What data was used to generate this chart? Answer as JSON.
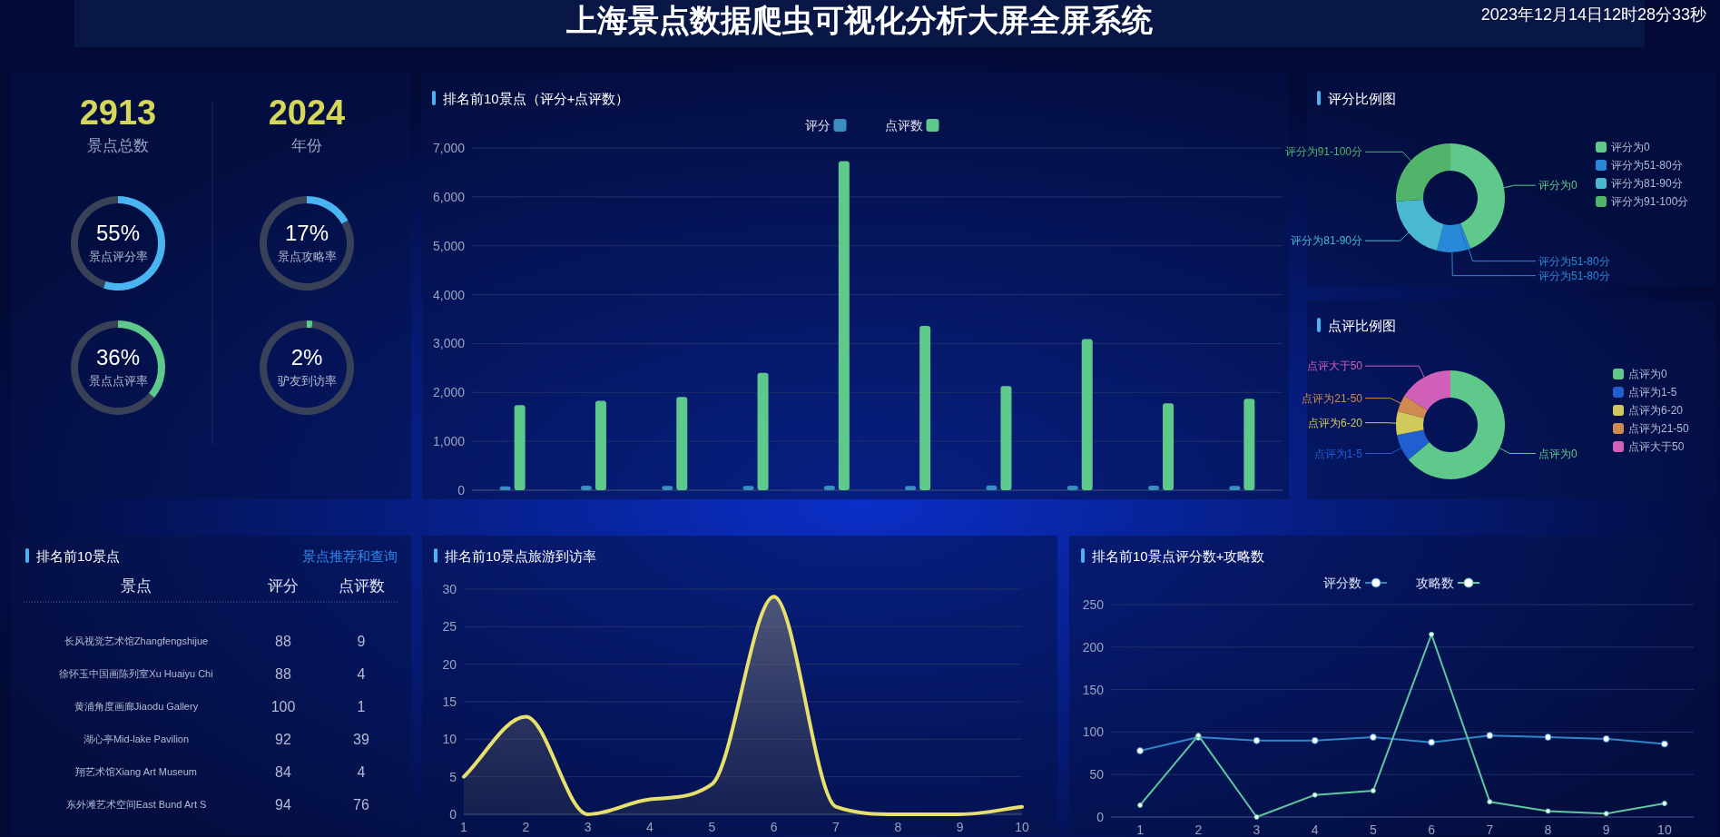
{
  "chart_data": [
    {
      "type": "other",
      "title": "上海景点数据爬虫可视化分析大屏全屏系统",
      "annotations": [
        "2023年12月14日12时28分33秒"
      ]
    },
    {
      "type": "other",
      "annotations": [
        "2913",
        "景点总数",
        "2024",
        "年份"
      ]
    },
    {
      "type": "donut",
      "categories": [
        "景点评分率",
        null
      ],
      "values": [
        55,
        45
      ],
      "colors": [
        "#4ab4f0",
        "#394159"
      ],
      "value_labels": [
        "55%",
        null
      ]
    },
    {
      "type": "donut",
      "categories": [
        "景点攻略率",
        null
      ],
      "values": [
        17,
        83
      ],
      "colors": [
        "#4ab4f0",
        "#394159"
      ],
      "value_labels": [
        "17%",
        null
      ]
    },
    {
      "type": "donut",
      "categories": [
        "景点点评率",
        null
      ],
      "values": [
        36,
        64
      ],
      "colors": [
        "#5ec98a",
        "#394159"
      ],
      "value_labels": [
        "36%",
        null
      ]
    },
    {
      "type": "donut",
      "categories": [
        "驴友到访率",
        null
      ],
      "values": [
        2,
        98
      ],
      "colors": [
        "#5ec98a",
        "#394159"
      ],
      "value_labels": [
        "2%",
        null
      ]
    },
    {
      "type": "bar",
      "title": "排名前10景点（评分+点评数）",
      "categories": [
        null,
        null,
        null,
        null,
        null,
        null,
        null,
        null,
        null,
        null
      ],
      "series": [
        {
          "name": "评分",
          "color": "#3a8fc0",
          "values": [
            78,
            94,
            90,
            90,
            94,
            88,
            96,
            94,
            92,
            86
          ]
        },
        {
          "name": "点评数",
          "color": "#5ec98a",
          "values": [
            1740,
            1830,
            1910,
            2400,
            6730,
            3360,
            2130,
            3090,
            1780,
            1870
          ]
        }
      ],
      "ylim": [
        0,
        7000
      ],
      "yticks": [
        0,
        {
          "value": 1000,
          "label": "1,000"
        },
        {
          "value": 2000,
          "label": "2,000"
        },
        {
          "value": 3000,
          "label": "3,000"
        },
        {
          "value": 4000,
          "label": "4,000"
        },
        {
          "value": 5000,
          "label": "5,000"
        },
        {
          "value": 6000,
          "label": "6,000"
        },
        {
          "value": 7000,
          "label": "7,000"
        }
      ],
      "grid": "y",
      "legend": "top"
    },
    {
      "type": "donut",
      "title": "评分比例图",
      "categories": [
        "评分为0",
        "评分为51-80分",
        "评分为51-80分",
        "评分为81-90分",
        "评分为91-100分"
      ],
      "values": [
        44,
        1,
        9,
        20,
        26
      ],
      "colors": [
        "#5ec98a",
        "#2a88d8",
        "#2a88d8",
        "#4ab8d0",
        "#52b36a"
      ],
      "legend": "right"
    },
    {
      "type": "donut",
      "title": "点评比例图",
      "categories": [
        "点评为0",
        "点评为1-5",
        "点评为6-20",
        "点评为21-50",
        "点评大于50"
      ],
      "values": [
        64,
        8,
        7,
        5,
        16
      ],
      "colors": [
        "#5ec98a",
        "#1f5fd0",
        "#d0c85a",
        "#d08a50",
        "#d060b8"
      ],
      "legend": "right"
    },
    {
      "type": "other",
      "title": "排名前10景点",
      "xlabel": "景点",
      "annotations": [
        "景点推荐和查询"
      ],
      "categories": [
        "长风视觉艺术馆Zhangfengshijue",
        "徐怀玉中国画陈列室Xu Huaiyu Chi",
        "黄浦角度画廊Jiaodu Gallery",
        "湖心亭Mid-lake Pavilion",
        "翔艺术馆Xiang Art Museum",
        "东外滩艺术空间East Bund Art S"
      ],
      "series": [
        {
          "name": "评分",
          "values": [
            88,
            88,
            100,
            92,
            84,
            94
          ]
        },
        {
          "name": "点评数",
          "values": [
            9,
            4,
            1,
            39,
            4,
            76
          ]
        }
      ],
      "data_labels": true
    },
    {
      "type": "area",
      "title": "排名前10景点旅游到访率",
      "categories": [
        "1",
        "2",
        "3",
        "4",
        "5",
        "6",
        "7",
        "8",
        "9",
        "10"
      ],
      "values": [
        5,
        13,
        0,
        2,
        4,
        29,
        1,
        0,
        0,
        1
      ],
      "color": "#e8e06c",
      "ylim": [
        0,
        30
      ],
      "yticks": [
        0,
        5,
        10,
        15,
        20,
        25,
        30
      ],
      "grid": "y"
    },
    {
      "type": "line",
      "title": "排名前10景点评分数+攻略数",
      "categories": [
        "1",
        "2",
        "3",
        "4",
        "5",
        "6",
        "7",
        "8",
        "9",
        "10"
      ],
      "series": [
        {
          "name": "评分数",
          "color": "#2f86c8",
          "values": [
            78,
            94,
            90,
            90,
            94,
            88,
            96,
            94,
            92,
            86
          ]
        },
        {
          "name": "攻略数",
          "color": "#5ec8a0",
          "values": [
            14,
            96,
            0,
            26,
            31,
            215,
            18,
            7,
            4,
            16
          ]
        }
      ],
      "ylim": [
        0,
        250
      ],
      "yticks": [
        0,
        50,
        100,
        150,
        200,
        250
      ],
      "grid": "y",
      "legend": "top",
      "marker": "circle"
    }
  ]
}
